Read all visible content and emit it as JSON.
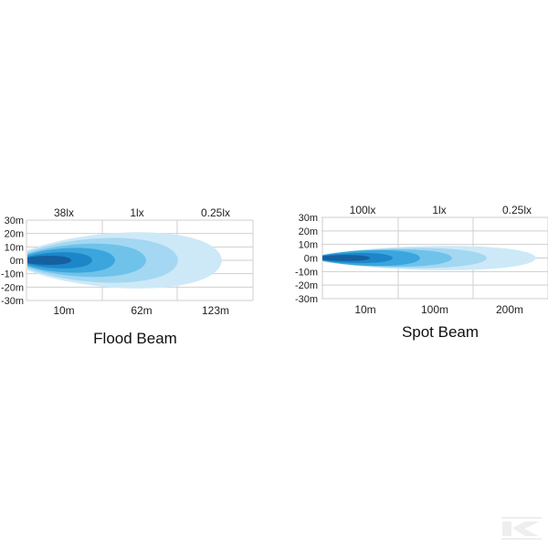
{
  "colors": [
    "#cde9f7",
    "#a4d7f1",
    "#6fc2ea",
    "#3aa6dd",
    "#1d86c8",
    "#15609f"
  ],
  "charts": [
    {
      "title": "Flood Beam",
      "y_ticks": [
        "30m",
        "20m",
        "10m",
        "0m",
        "-10m",
        "-20m",
        "-30m"
      ],
      "x_labels": [
        "10m",
        "62m",
        "123m"
      ],
      "lux_labels": [
        "38lx",
        "1lx",
        "0.25lx"
      ]
    },
    {
      "title": "Spot Beam",
      "y_ticks": [
        "30m",
        "20m",
        "10m",
        "0m",
        "-10m",
        "-20m",
        "-30m"
      ],
      "x_labels": [
        "10m",
        "100m",
        "200m"
      ],
      "lux_labels": [
        "100lx",
        "1lx",
        "0.25lx"
      ]
    }
  ],
  "logo_text": "K"
}
